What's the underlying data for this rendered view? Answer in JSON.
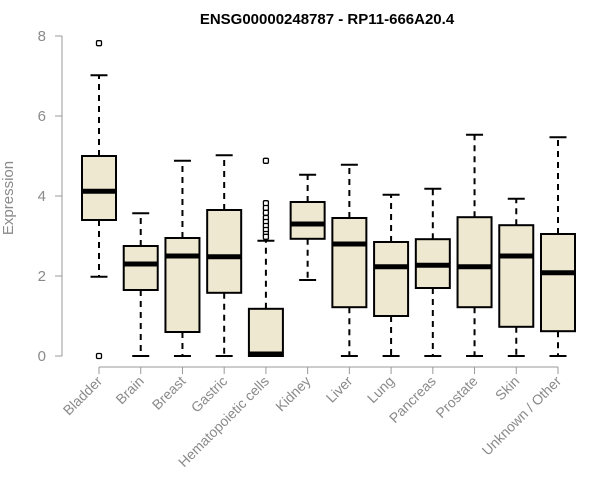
{
  "chart_data": {
    "type": "boxplot",
    "title": "ENSG00000248787 - RP11-666A20.4",
    "xlabel": "",
    "ylabel": "Expression",
    "ylim": [
      0,
      8
    ],
    "yticks": [
      0,
      2,
      4,
      6,
      8
    ],
    "box_fill": "#efe8d0",
    "categories": [
      "Bladder",
      "Brain",
      "Breast",
      "Gastric",
      "Hematopoietic cells",
      "Kidney",
      "Liver",
      "Lung",
      "Pancreas",
      "Prostate",
      "Skin",
      "Unknown / Other"
    ],
    "boxes": [
      {
        "name": "Bladder",
        "whisker_low": 1.98,
        "q1": 3.4,
        "median": 4.12,
        "q3": 5.0,
        "whisker_high": 7.02,
        "outliers": [
          7.82,
          0.0
        ]
      },
      {
        "name": "Brain",
        "whisker_low": 0.0,
        "q1": 1.65,
        "median": 2.3,
        "q3": 2.75,
        "whisker_high": 3.57,
        "outliers": []
      },
      {
        "name": "Breast",
        "whisker_low": 0.0,
        "q1": 0.6,
        "median": 2.5,
        "q3": 2.95,
        "whisker_high": 4.88,
        "outliers": []
      },
      {
        "name": "Gastric",
        "whisker_low": 0.0,
        "q1": 1.58,
        "median": 2.48,
        "q3": 3.65,
        "whisker_high": 5.02,
        "outliers": []
      },
      {
        "name": "Hematopoietic cells",
        "whisker_low": 0.0,
        "q1": 0.0,
        "median": 0.05,
        "q3": 1.18,
        "whisker_high": 2.88,
        "outliers": [
          4.88,
          3.82,
          3.7,
          3.58,
          3.45,
          3.35,
          3.25,
          3.15,
          3.05,
          2.98
        ]
      },
      {
        "name": "Kidney",
        "whisker_low": 1.9,
        "q1": 2.93,
        "median": 3.3,
        "q3": 3.85,
        "whisker_high": 4.53,
        "outliers": []
      },
      {
        "name": "Liver",
        "whisker_low": 0.0,
        "q1": 1.22,
        "median": 2.8,
        "q3": 3.45,
        "whisker_high": 4.78,
        "outliers": []
      },
      {
        "name": "Lung",
        "whisker_low": 0.0,
        "q1": 1.0,
        "median": 2.23,
        "q3": 2.85,
        "whisker_high": 4.03,
        "outliers": []
      },
      {
        "name": "Pancreas",
        "whisker_low": 0.0,
        "q1": 1.7,
        "median": 2.27,
        "q3": 2.92,
        "whisker_high": 4.18,
        "outliers": []
      },
      {
        "name": "Prostate",
        "whisker_low": 0.0,
        "q1": 1.22,
        "median": 2.23,
        "q3": 3.47,
        "whisker_high": 5.53,
        "outliers": []
      },
      {
        "name": "Skin",
        "whisker_low": 0.0,
        "q1": 0.73,
        "median": 2.5,
        "q3": 3.27,
        "whisker_high": 3.93,
        "outliers": []
      },
      {
        "name": "Unknown / Other",
        "whisker_low": 0.0,
        "q1": 0.62,
        "median": 2.08,
        "q3": 3.05,
        "whisker_high": 5.47,
        "outliers": []
      }
    ]
  }
}
